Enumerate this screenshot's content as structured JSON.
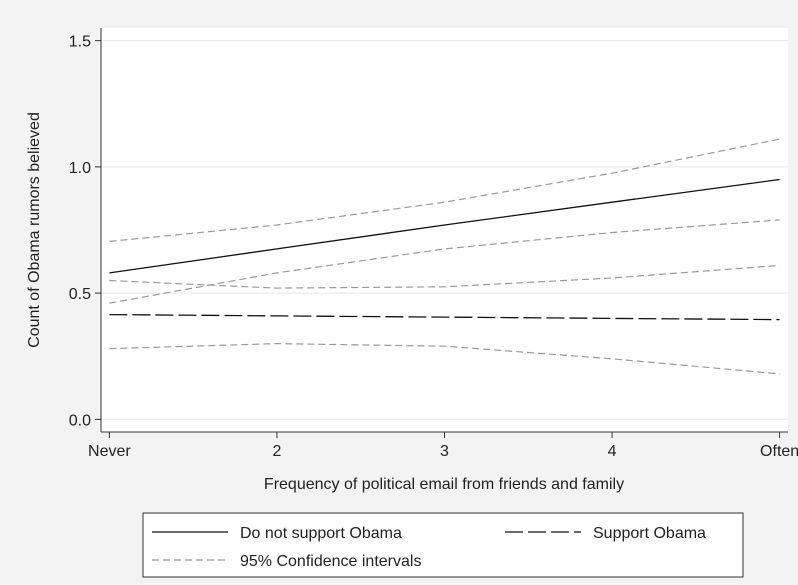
{
  "chart_data": {
    "type": "line",
    "title": "",
    "xlabel": "Frequency of political email from friends and family",
    "ylabel": "Count of Obama rumors believed",
    "x": [
      1,
      2,
      3,
      4,
      5
    ],
    "x_tick_labels": [
      "Never",
      "2",
      "3",
      "4",
      "Often"
    ],
    "xlim": [
      0.95,
      5.05
    ],
    "ylim": [
      -0.05,
      1.55
    ],
    "y_ticks": [
      0,
      0.5,
      1.0,
      1.5
    ],
    "y_tick_labels": [
      "0.0",
      "0.5",
      "1.0",
      "1.5"
    ],
    "grid": "horizontal",
    "series": [
      {
        "name": "Do not support Obama",
        "style": "solid",
        "color": "#111111",
        "values": [
          0.58,
          0.675,
          0.77,
          0.86,
          0.95
        ]
      },
      {
        "name": "Support Obama",
        "style": "longdash",
        "color": "#111111",
        "values": [
          0.415,
          0.41,
          0.405,
          0.4,
          0.395
        ]
      },
      {
        "name": "95% Confidence intervals",
        "style": "shortdash",
        "color": "#9a9a9a",
        "values": [
          0.705,
          0.77,
          0.86,
          0.975,
          1.11
        ]
      },
      {
        "name": "",
        "style": "shortdash",
        "color": "#9a9a9a",
        "values": [
          0.46,
          0.58,
          0.675,
          0.74,
          0.79
        ]
      },
      {
        "name": "",
        "style": "shortdash",
        "color": "#9a9a9a",
        "values": [
          0.55,
          0.52,
          0.525,
          0.56,
          0.61
        ]
      },
      {
        "name": "",
        "style": "shortdash",
        "color": "#9a9a9a",
        "values": [
          0.28,
          0.3,
          0.29,
          0.24,
          0.18
        ]
      }
    ],
    "legend": {
      "placement": "bottom",
      "entries": [
        "Do not support Obama",
        "Support Obama",
        "95% Confidence intervals"
      ]
    },
    "colors": {
      "background": "#f3f3f3",
      "plot_background": "#ffffff",
      "grid": "#e8e8e8"
    }
  }
}
